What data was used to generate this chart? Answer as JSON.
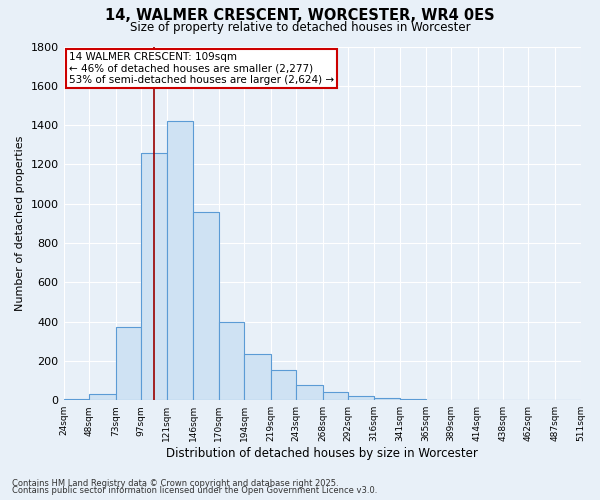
{
  "title": "14, WALMER CRESCENT, WORCESTER, WR4 0ES",
  "subtitle": "Size of property relative to detached houses in Worcester",
  "xlabel": "Distribution of detached houses by size in Worcester",
  "ylabel": "Number of detached properties",
  "bar_values": [
    5,
    30,
    375,
    1260,
    1420,
    960,
    400,
    235,
    155,
    75,
    40,
    20,
    10,
    5,
    3,
    2,
    1,
    0,
    0,
    0
  ],
  "bar_edges": [
    24,
    48,
    73,
    97,
    121,
    146,
    170,
    194,
    219,
    243,
    268,
    292,
    316,
    341,
    365,
    389,
    414,
    438,
    462,
    487,
    511
  ],
  "bar_color": "#cfe2f3",
  "bar_edgecolor": "#5b9bd5",
  "property_sqm": 109,
  "property_label": "14 WALMER CRESCENT: 109sqm",
  "annotation_line1": "← 46% of detached houses are smaller (2,277)",
  "annotation_line2": "53% of semi-detached houses are larger (2,624) →",
  "annotation_box_edgecolor": "#cc0000",
  "property_line_color": "#990000",
  "ylim": [
    0,
    1800
  ],
  "yticks": [
    0,
    200,
    400,
    600,
    800,
    1000,
    1200,
    1400,
    1600,
    1800
  ],
  "x_labels": [
    "24sqm",
    "48sqm",
    "73sqm",
    "97sqm",
    "121sqm",
    "146sqm",
    "170sqm",
    "194sqm",
    "219sqm",
    "243sqm",
    "268sqm",
    "292sqm",
    "316sqm",
    "341sqm",
    "365sqm",
    "389sqm",
    "414sqm",
    "438sqm",
    "462sqm",
    "487sqm",
    "511sqm"
  ],
  "footnote1": "Contains HM Land Registry data © Crown copyright and database right 2025.",
  "footnote2": "Contains public sector information licensed under the Open Government Licence v3.0.",
  "bg_color": "#e8f0f8",
  "plot_bg_color": "#e8f0f8",
  "grid_color": "#ffffff"
}
